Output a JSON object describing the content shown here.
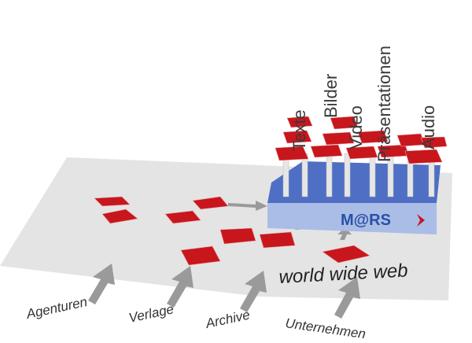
{
  "categories": [
    "Texte",
    "Bilder",
    "Video",
    "Präsentationen",
    "Audio"
  ],
  "logo": "M@RS",
  "platform_label": "world wide web",
  "sources": [
    "Agenturen",
    "Verlage",
    "Archive",
    "Unternehmen"
  ]
}
